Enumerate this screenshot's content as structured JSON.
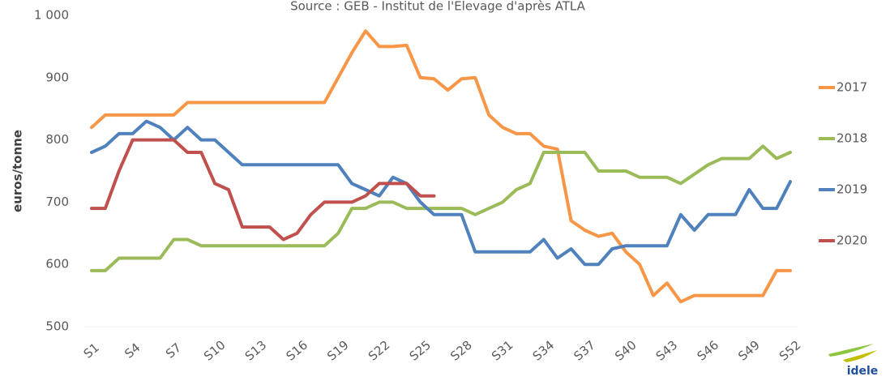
{
  "chart_data": {
    "type": "line",
    "subtitle": "Source : GEB - Institut de l'Elevage d'après ATLA",
    "y_label": "euros/tonne",
    "logo_text": "idele",
    "categories": [
      "S1",
      null,
      null,
      "S4",
      null,
      null,
      "S7",
      null,
      null,
      "S10",
      null,
      null,
      "S13",
      null,
      null,
      "S16",
      null,
      null,
      "S19",
      null,
      null,
      "S22",
      null,
      null,
      "S25",
      null,
      null,
      "S28",
      null,
      null,
      "S31",
      null,
      null,
      "S34",
      null,
      null,
      "S37",
      null,
      null,
      "S40",
      null,
      null,
      "S43",
      null,
      null,
      "S46",
      null,
      null,
      "S49",
      null,
      null,
      "S52"
    ],
    "ylim": [
      500,
      1000
    ],
    "yticks": [
      500,
      600,
      700,
      800,
      900,
      {
        "value": 1000,
        "label": "1 000"
      }
    ],
    "grid": false,
    "legend": "right",
    "series": [
      {
        "name": "2017",
        "color": "#f79646",
        "values": [
          820,
          840,
          840,
          840,
          840,
          840,
          840,
          860,
          860,
          860,
          860,
          860,
          860,
          860,
          860,
          860,
          860,
          860,
          900,
          940,
          975,
          950,
          950,
          952,
          900,
          898,
          880,
          898,
          900,
          840,
          820,
          810,
          810,
          790,
          785,
          670,
          655,
          645,
          650,
          620,
          600,
          550,
          570,
          540,
          550,
          550,
          550,
          550,
          550,
          550,
          590,
          590
        ]
      },
      {
        "name": "2018",
        "color": "#9bbb59",
        "values": [
          590,
          590,
          610,
          610,
          610,
          610,
          640,
          640,
          630,
          630,
          630,
          630,
          630,
          630,
          630,
          630,
          630,
          630,
          650,
          690,
          690,
          700,
          700,
          690,
          690,
          690,
          690,
          690,
          680,
          690,
          700,
          720,
          730,
          780,
          780,
          780,
          780,
          750,
          750,
          750,
          740,
          740,
          740,
          730,
          745,
          760,
          770,
          770,
          770,
          790,
          770,
          780
        ]
      },
      {
        "name": "2019",
        "color": "#4f81bd",
        "values": [
          780,
          790,
          810,
          810,
          830,
          820,
          800,
          820,
          800,
          800,
          780,
          760,
          760,
          760,
          760,
          760,
          760,
          760,
          760,
          730,
          720,
          710,
          740,
          730,
          700,
          680,
          680,
          680,
          620,
          620,
          620,
          620,
          620,
          640,
          610,
          625,
          600,
          600,
          625,
          630,
          630,
          630,
          630,
          680,
          655,
          680,
          680,
          680,
          720,
          690,
          690,
          733
        ]
      },
      {
        "name": "2020",
        "color": "#c0504d",
        "values": [
          690,
          690,
          750,
          800,
          800,
          800,
          800,
          780,
          780,
          730,
          720,
          660,
          660,
          660,
          640,
          650,
          680,
          700,
          700,
          700,
          710,
          730,
          730,
          730,
          710,
          710,
          null,
          null,
          null,
          null,
          null,
          null,
          null,
          null,
          null,
          null,
          null,
          null,
          null,
          null,
          null,
          null,
          null,
          null,
          null,
          null,
          null,
          null,
          null,
          null,
          null,
          null
        ]
      }
    ]
  }
}
